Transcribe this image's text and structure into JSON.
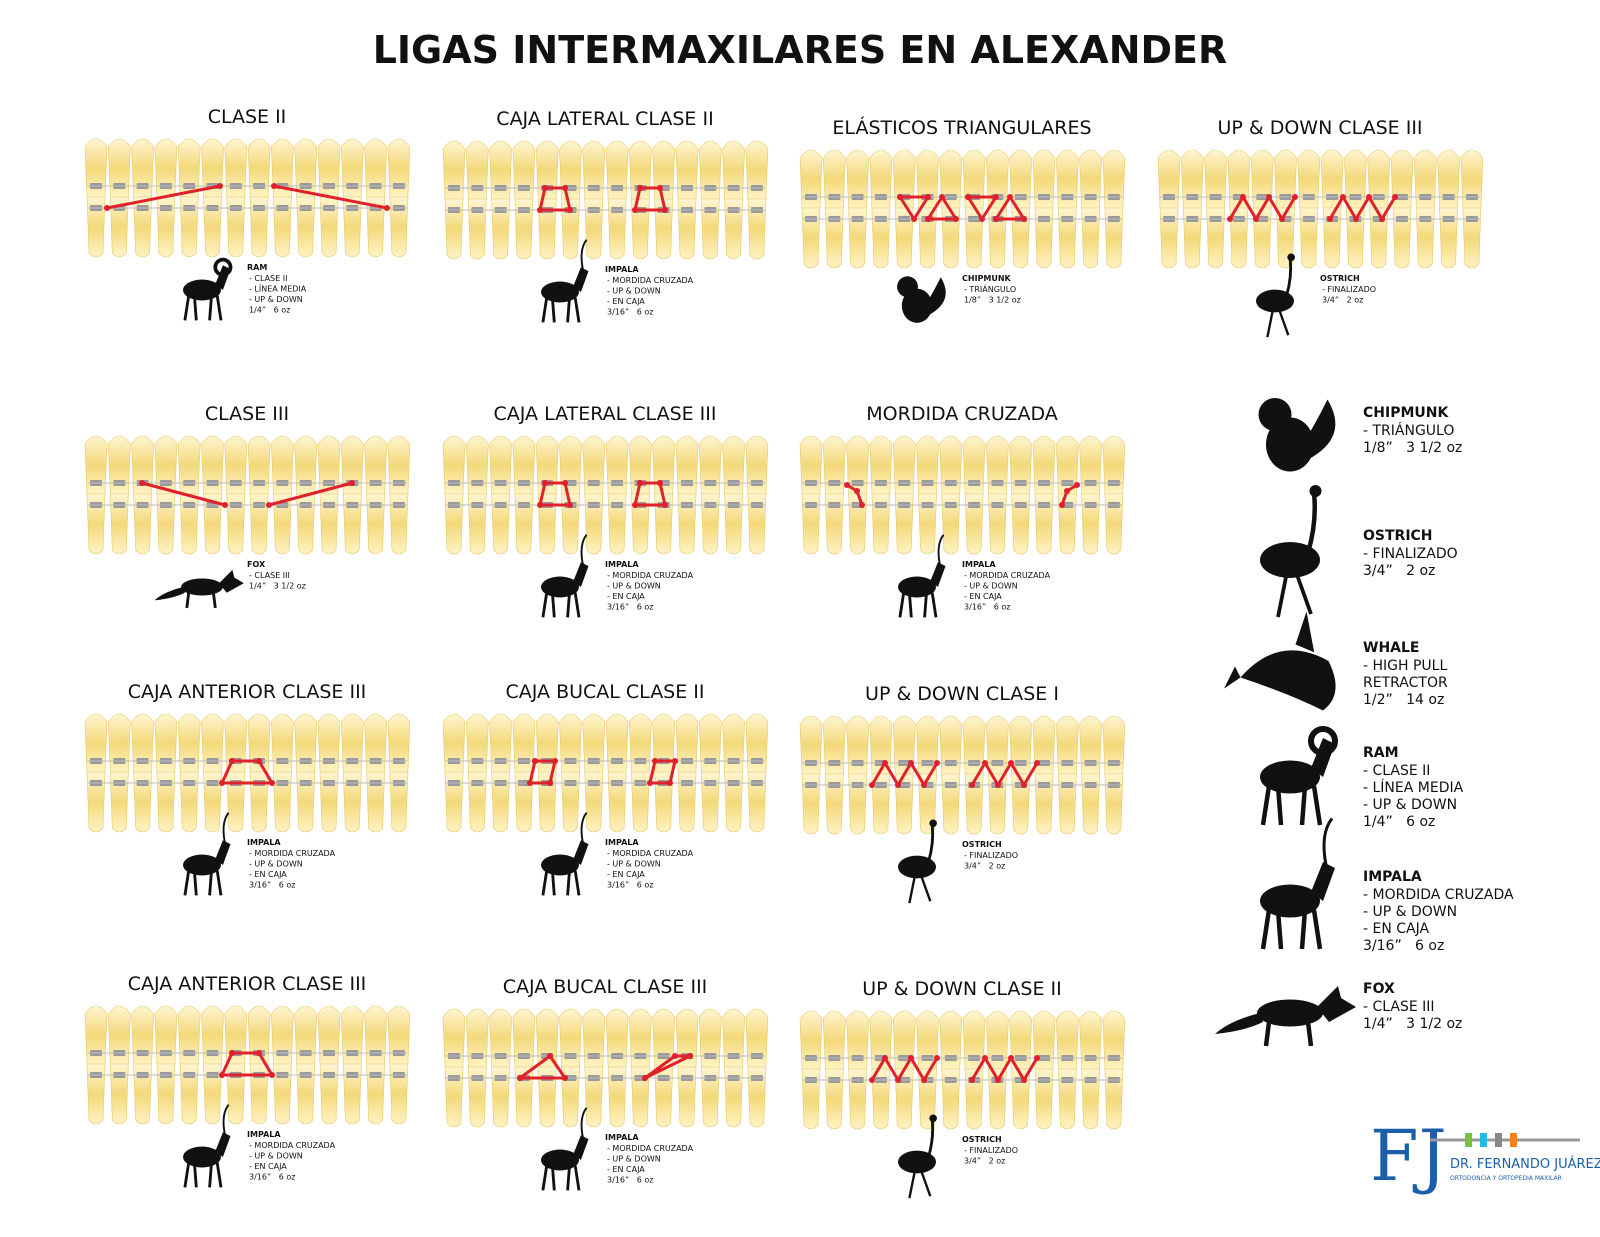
{
  "title": "LIGAS INTERMAXILARES EN ALEXANDER",
  "panels": [
    {
      "title": "CLASE II",
      "animal": "RAM",
      "lines": [
        "- CLASE II",
        "- LÍNEA MEDIA",
        "- UP & DOWN",
        "1/4”   6 oz"
      ]
    },
    {
      "title": "CAJA LATERAL CLASE II",
      "animal": "IMPALA",
      "lines": [
        "- MORDIDA CRUZADA",
        "- UP & DOWN",
        "- EN CAJA",
        "3/16”   6 oz"
      ]
    },
    {
      "title": "ELÁSTICOS TRIANGULARES",
      "animal": "CHIPMUNK",
      "lines": [
        "- TRIÁNGULO",
        "1/8”   3 1/2 oz"
      ]
    },
    {
      "title": "UP & DOWN CLASE III",
      "animal": "OSTRICH",
      "lines": [
        "- FINALIZADO",
        "3/4”   2 oz"
      ]
    },
    {
      "title": "CLASE III",
      "animal": "FOX",
      "lines": [
        "- CLASE III",
        "1/4”   3 1/2 oz"
      ]
    },
    {
      "title": "CAJA LATERAL CLASE III",
      "animal": "IMPALA",
      "lines": [
        "- MORDIDA CRUZADA",
        "- UP & DOWN",
        "- EN CAJA",
        "3/16”   6 oz"
      ]
    },
    {
      "title": "MORDIDA CRUZADA",
      "animal": "IMPALA",
      "lines": [
        "- MORDIDA CRUZADA",
        "- UP & DOWN",
        "- EN CAJA",
        "3/16”   6 oz"
      ]
    },
    {
      "title": "CAJA ANTERIOR CLASE III",
      "animal": "IMPALA",
      "lines": [
        "- MORDIDA CRUZADA",
        "- UP & DOWN",
        "- EN CAJA",
        "3/16”   6 oz"
      ]
    },
    {
      "title": "CAJA BUCAL CLASE II",
      "animal": "IMPALA",
      "lines": [
        "- MORDIDA CRUZADA",
        "- UP & DOWN",
        "- EN CAJA",
        "3/16”   6 oz"
      ]
    },
    {
      "title": "UP & DOWN CLASE I",
      "animal": "OSTRICH",
      "lines": [
        "- FINALIZADO",
        "3/4”   2 oz"
      ]
    },
    {
      "title": "CAJA ANTERIOR CLASE III",
      "animal": "IMPALA",
      "lines": [
        "- MORDIDA CRUZADA",
        "- UP & DOWN",
        "- EN CAJA",
        "3/16”   6 oz"
      ]
    },
    {
      "title": "CAJA BUCAL CLASE III",
      "animal": "IMPALA",
      "lines": [
        "- MORDIDA CRUZADA",
        "- UP & DOWN",
        "- EN CAJA",
        "3/16”   6 oz"
      ]
    },
    {
      "title": "UP & DOWN CLASE II",
      "animal": "OSTRICH",
      "lines": [
        "- FINALIZADO",
        "3/4”   2 oz"
      ]
    }
  ],
  "legend": [
    {
      "name": "CHIPMUNK",
      "lines": [
        "- TRIÁNGULO",
        "1/8”   3 1/2 oz"
      ]
    },
    {
      "name": "OSTRICH",
      "lines": [
        "- FINALIZADO",
        "3/4”   2 oz"
      ]
    },
    {
      "name": "WHALE",
      "lines": [
        "- HIGH PULL",
        "RETRACTOR",
        "1/2”   14 oz"
      ]
    },
    {
      "name": "RAM",
      "lines": [
        "- CLASE II",
        "- LÍNEA MEDIA",
        "- UP & DOWN",
        "1/4”   6 oz"
      ]
    },
    {
      "name": "IMPALA",
      "lines": [
        "- MORDIDA CRUZADA",
        "- UP & DOWN",
        "- EN CAJA",
        "3/16”   6 oz"
      ]
    },
    {
      "name": "FOX",
      "lines": [
        "- CLASE III",
        "1/4”   3 1/2 oz"
      ]
    }
  ],
  "logo": {
    "initials": "FJ",
    "name": "DR. FERNANDO JUÁREZ",
    "tagline": "ORTODONCIA Y ORTOPEDIA MAXILAR"
  }
}
